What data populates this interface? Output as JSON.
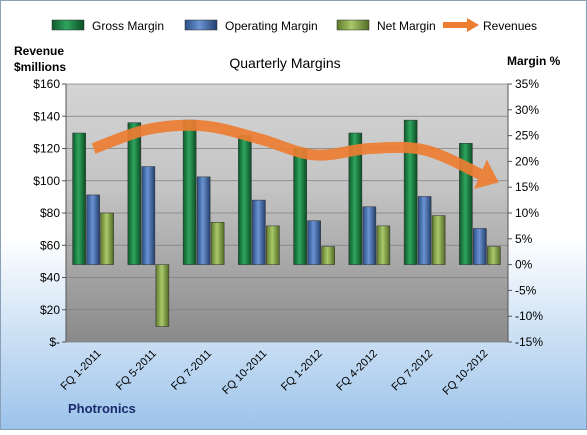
{
  "chart_data": {
    "type": "bar",
    "title": "Quarterly Margins",
    "left_axis_title": [
      "Revenue",
      "$millions"
    ],
    "right_axis_title": "Margin %",
    "source_label": "Photronics",
    "categories": [
      "FQ 1-2011",
      "FQ 5-2011",
      "FQ 7-2011",
      "FQ 10-2011",
      "FQ 1-2012",
      "FQ 4-2012",
      "FQ 7-2012",
      "FQ 10-2012"
    ],
    "left_axis": {
      "min": 0,
      "max": 160,
      "step": 20,
      "tick_labels": [
        "$-",
        "$20",
        "$40",
        "$60",
        "$80",
        "$100",
        "$120",
        "$140",
        "$160"
      ]
    },
    "right_axis": {
      "min": -15,
      "max": 35,
      "step": 5,
      "tick_labels": [
        "-15%",
        "-10%",
        "-5%",
        "0%",
        "5%",
        "10%",
        "15%",
        "20%",
        "25%",
        "30%",
        "35%"
      ]
    },
    "series": [
      {
        "name": "Gross Margin",
        "axis": "right",
        "type": "bar",
        "values": [
          25.5,
          27.5,
          28.0,
          25.0,
          22.5,
          25.5,
          28.0,
          23.5
        ],
        "color": "#1f8a4c"
      },
      {
        "name": "Operating Margin",
        "axis": "right",
        "type": "bar",
        "values": [
          13.5,
          19.0,
          17.0,
          12.5,
          8.5,
          11.2,
          13.2,
          7.0
        ],
        "color": "#4a78bf"
      },
      {
        "name": "Net Margin",
        "axis": "right",
        "type": "bar",
        "values": [
          10.0,
          -12.0,
          8.2,
          7.5,
          3.5,
          7.5,
          9.5,
          3.5
        ],
        "color": "#9bbb59"
      },
      {
        "name": "Revenues",
        "axis": "left",
        "type": "line",
        "values": [
          120,
          132,
          134,
          126,
          116,
          120,
          119,
          104
        ],
        "color": "#ed7d31"
      }
    ],
    "grid": true,
    "legend_position": "top"
  }
}
